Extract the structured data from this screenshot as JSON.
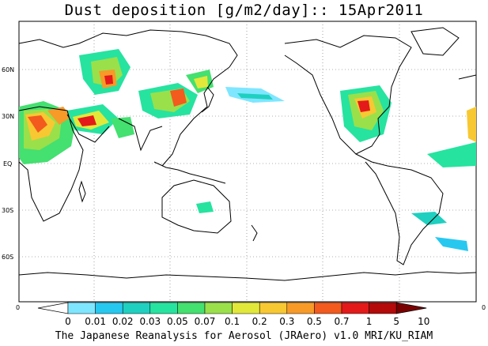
{
  "title": "Dust deposition [g/m2/day]:: 15Apr2011",
  "credit": "The Japanese Reanalysis for Aerosol (JRAero) v1.0 MRI/KU_RIAM",
  "axis": {
    "lat_labels": [
      "60N",
      "30N",
      "EQ",
      "30S",
      "60S"
    ],
    "corner_left": "0",
    "corner_right": "0"
  },
  "colorbar": {
    "labels": [
      "0",
      "0.01",
      "0.02",
      "0.03",
      "0.05",
      "0.07",
      "0.1",
      "0.2",
      "0.3",
      "0.5",
      "0.7",
      "1",
      "5",
      "10"
    ],
    "colors": [
      "#ffffff",
      "#7fe6ff",
      "#27c8f0",
      "#1fd0c0",
      "#26e3a0",
      "#44e070",
      "#9ae04a",
      "#e2e83a",
      "#f8c832",
      "#f79a28",
      "#f25a1e",
      "#e41a1a",
      "#b40a0a",
      "#7a0000"
    ]
  }
}
